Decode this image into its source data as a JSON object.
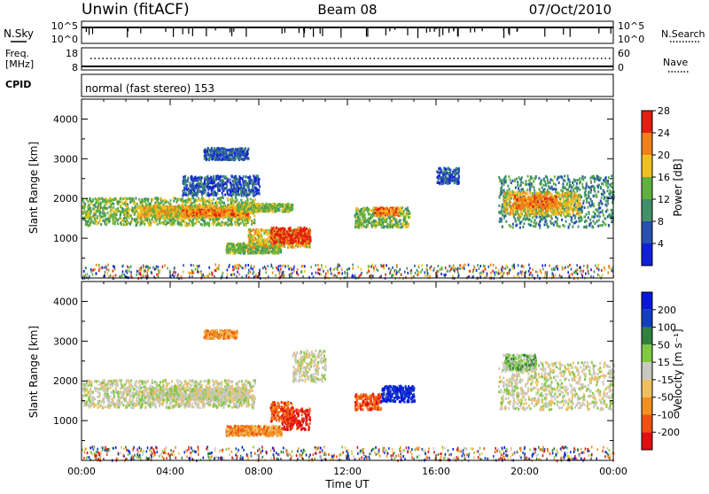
{
  "header": {
    "station": "Unwin (fitACF)",
    "beam": "Beam 08",
    "date": "07/Oct/2010"
  },
  "top_panel": {
    "nsky_label": "N.Sky",
    "nsky_ticks": [
      "10^5",
      "10^0"
    ],
    "nsearch_label": "N.Search",
    "right_ticks_top": [
      "10^5",
      "10^0"
    ],
    "freq_label": "Freq.",
    "freq_unit": "[MHz]",
    "freq_ticks": [
      "18",
      "8"
    ],
    "nave_label": "Nave",
    "nave_ticks": [
      "60",
      "0"
    ],
    "cpid_label": "CPID",
    "cpid_text": "normal (fast stereo) 153"
  },
  "chart_data": [
    {
      "type": "heatmap",
      "name": "power-panel",
      "ylabel": "Slant Range [km]",
      "ylim": [
        0,
        4500
      ],
      "yticks": [
        1000,
        2000,
        3000,
        4000
      ],
      "xlim": [
        0,
        24
      ],
      "colorbar": {
        "label": "Power [dB]",
        "ticks": [
          "4",
          "8",
          "12",
          "16",
          "20",
          "24",
          "28"
        ],
        "colors": [
          "#1020d8",
          "#2850b0",
          "#40906a",
          "#60b040",
          "#f0c020",
          "#f08018",
          "#e02010"
        ]
      },
      "regions": [
        {
          "x": [
            0.0,
            7.8
          ],
          "y": [
            1350,
            2050
          ],
          "level": 3
        },
        {
          "x": [
            2.5,
            7.5
          ],
          "y": [
            1550,
            1850
          ],
          "level": 4
        },
        {
          "x": [
            4.5,
            7.5
          ],
          "y": [
            1600,
            1750
          ],
          "level": 5
        },
        {
          "x": [
            7.0,
            9.5
          ],
          "y": [
            1700,
            1900
          ],
          "level": 3
        },
        {
          "x": [
            6.5,
            9.0
          ],
          "y": [
            650,
            900
          ],
          "level": 3
        },
        {
          "x": [
            7.5,
            10.3
          ],
          "y": [
            800,
            1250
          ],
          "level": 4
        },
        {
          "x": [
            8.5,
            10.3
          ],
          "y": [
            900,
            1300
          ],
          "level": 6
        },
        {
          "x": [
            5.5,
            7.5
          ],
          "y": [
            3000,
            3300
          ],
          "level": 1
        },
        {
          "x": [
            4.5,
            8.0
          ],
          "y": [
            2100,
            2600
          ],
          "level": 1
        },
        {
          "x": [
            12.3,
            14.8
          ],
          "y": [
            1300,
            1800
          ],
          "level": 3
        },
        {
          "x": [
            13.2,
            14.3
          ],
          "y": [
            1600,
            1800
          ],
          "level": 5
        },
        {
          "x": [
            18.8,
            24.0
          ],
          "y": [
            1300,
            2600
          ],
          "level": 2
        },
        {
          "x": [
            19.0,
            22.5
          ],
          "y": [
            1600,
            2200
          ],
          "level": 4
        },
        {
          "x": [
            19.5,
            21.5
          ],
          "y": [
            1800,
            2100
          ],
          "level": 5
        },
        {
          "x": [
            16.0,
            17.0
          ],
          "y": [
            2400,
            2800
          ],
          "level": 1
        }
      ]
    },
    {
      "type": "heatmap",
      "name": "velocity-panel",
      "ylabel": "Slant Range [km]",
      "ylim": [
        0,
        4500
      ],
      "yticks": [
        1000,
        2000,
        3000,
        4000
      ],
      "xlim": [
        0,
        24
      ],
      "xlabel": "Time UT",
      "xticks": [
        "00:00",
        "04:00",
        "08:00",
        "12:00",
        "16:00",
        "20:00",
        "00:00"
      ],
      "colorbar": {
        "label": "Velocity [m s⁻¹]",
        "ticks": [
          "-200",
          "-100",
          "-50",
          "-15",
          "15",
          "50",
          "100",
          "200"
        ],
        "colors": [
          "#e01010",
          "#f05010",
          "#f09020",
          "#f0c060",
          "#c8c8c0",
          "#80c840",
          "#308040",
          "#1040c0",
          "#0818d8"
        ]
      },
      "regions": [
        {
          "x": [
            0.0,
            7.8
          ],
          "y": [
            1350,
            2050
          ],
          "level": 4
        },
        {
          "x": [
            3.0,
            7.5
          ],
          "y": [
            1550,
            1850
          ],
          "level": 4
        },
        {
          "x": [
            6.5,
            9.0
          ],
          "y": [
            650,
            900
          ],
          "level": 2
        },
        {
          "x": [
            9.0,
            10.3
          ],
          "y": [
            800,
            1350
          ],
          "level": 0
        },
        {
          "x": [
            8.5,
            9.5
          ],
          "y": [
            1000,
            1500
          ],
          "level": 1
        },
        {
          "x": [
            5.5,
            7.0
          ],
          "y": [
            3100,
            3300
          ],
          "level": 2
        },
        {
          "x": [
            12.3,
            13.5
          ],
          "y": [
            1300,
            1700
          ],
          "level": 1
        },
        {
          "x": [
            13.5,
            15.0
          ],
          "y": [
            1500,
            1900
          ],
          "level": 8
        },
        {
          "x": [
            18.8,
            24.0
          ],
          "y": [
            1300,
            2500
          ],
          "level": 4
        },
        {
          "x": [
            19.0,
            20.5
          ],
          "y": [
            2300,
            2700
          ],
          "level": 5
        },
        {
          "x": [
            9.5,
            11.0
          ],
          "y": [
            2000,
            2800
          ],
          "level": 4
        }
      ]
    }
  ]
}
